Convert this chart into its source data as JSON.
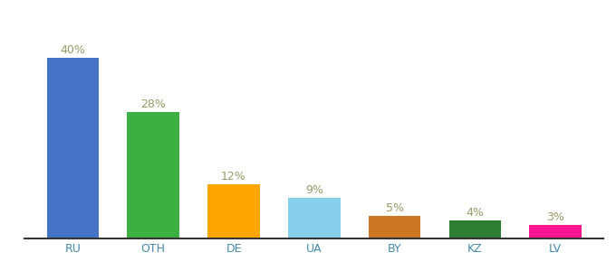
{
  "categories": [
    "RU",
    "OTH",
    "DE",
    "UA",
    "BY",
    "KZ",
    "LV"
  ],
  "values": [
    40,
    28,
    12,
    9,
    5,
    4,
    3
  ],
  "labels": [
    "40%",
    "28%",
    "12%",
    "9%",
    "5%",
    "4%",
    "3%"
  ],
  "bar_colors": [
    "#4472C4",
    "#3CB043",
    "#FFA500",
    "#87CEEB",
    "#CC7722",
    "#2E7D32",
    "#FF1493"
  ],
  "label_fontsize": 9,
  "tick_fontsize": 9,
  "label_color": "#999966",
  "tick_color": "#4488AA",
  "background_color": "#ffffff",
  "ylim": [
    0,
    48
  ],
  "bar_width": 0.65
}
